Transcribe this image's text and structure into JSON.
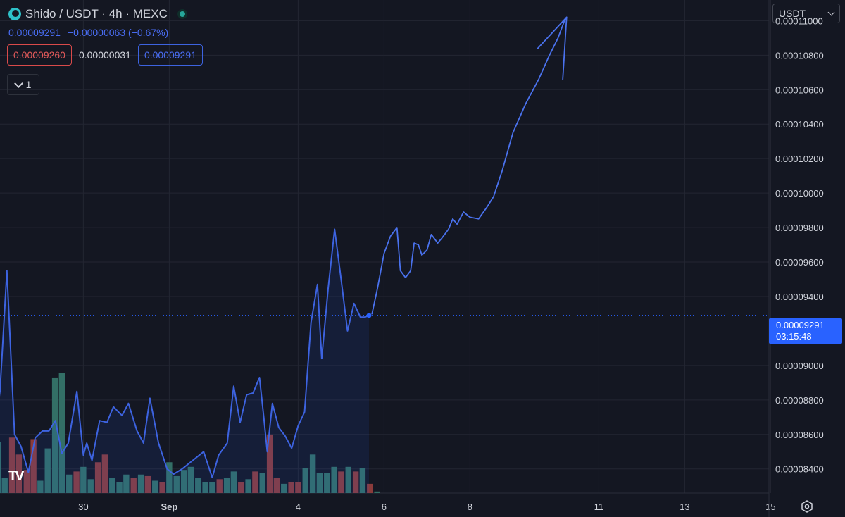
{
  "header": {
    "title": "Shido / USDT · 4h · MEXC",
    "last_price": "0.00009291",
    "change": "−0.00000063 (−0.67%)"
  },
  "boxes": {
    "bid": "0.00009260",
    "spread": "0.00000031",
    "ask": "0.00009291"
  },
  "indicator_toggle": {
    "count": "1"
  },
  "currency_selector": {
    "value": "USDT"
  },
  "price_label": {
    "price": "0.00009291",
    "countdown": "03:15:48"
  },
  "brand": {
    "logo_text": "TV"
  },
  "colors": {
    "line": "#3d63e0",
    "sketch": "#4a72ee",
    "vol_up": "#336f66",
    "vol_down": "#8a3b3b",
    "grid": "#232632",
    "accent": "#2962ff"
  },
  "chart_data": {
    "type": "line",
    "title": "Shido / USDT · 4h · MEXC",
    "y_ticks": [
      "0.00011000",
      "0.00010800",
      "0.00010600",
      "0.00010400",
      "0.00010200",
      "0.00010000",
      "0.00009800",
      "0.00009600",
      "0.00009400",
      "0.00009000",
      "0.00008800",
      "0.00008600",
      "0.00008400"
    ],
    "ylim": [
      8.26e-05,
      0.0001112
    ],
    "x_ticks": [
      {
        "label": "30",
        "day": 30
      },
      {
        "label": "Sep",
        "day": 32
      },
      {
        "label": "4",
        "day": 35
      },
      {
        "label": "6",
        "day": 37
      },
      {
        "label": "8",
        "day": 39
      },
      {
        "label": "11",
        "day": 42
      },
      {
        "label": "13",
        "day": 44
      },
      {
        "label": "15",
        "day": 46
      }
    ],
    "xlim": [
      28.06,
      45.96
    ],
    "current_price": 9.291e-05,
    "series": [
      {
        "points": [
          [
            28.0,
            8.74e-05
          ],
          [
            28.06,
            8.85e-05
          ],
          [
            28.22,
            9.55e-05
          ],
          [
            28.4,
            8.6e-05
          ],
          [
            28.55,
            8.53e-05
          ],
          [
            28.72,
            8.38e-05
          ],
          [
            28.88,
            8.58e-05
          ],
          [
            29.05,
            8.62e-05
          ],
          [
            29.2,
            8.62e-05
          ],
          [
            29.35,
            8.68e-05
          ],
          [
            29.5,
            8.49e-05
          ],
          [
            29.65,
            8.55e-05
          ],
          [
            29.85,
            8.85e-05
          ],
          [
            30.0,
            8.48e-05
          ],
          [
            30.08,
            8.55e-05
          ],
          [
            30.2,
            8.45e-05
          ],
          [
            30.38,
            8.68e-05
          ],
          [
            30.55,
            8.67e-05
          ],
          [
            30.7,
            8.76e-05
          ],
          [
            30.9,
            8.71e-05
          ],
          [
            31.05,
            8.78e-05
          ],
          [
            31.25,
            8.62e-05
          ],
          [
            31.4,
            8.55e-05
          ],
          [
            31.55,
            8.81e-05
          ],
          [
            31.75,
            8.55e-05
          ],
          [
            31.95,
            8.4e-05
          ],
          [
            32.1,
            8.37e-05
          ],
          [
            32.3,
            8.4e-05
          ],
          [
            32.55,
            8.45e-05
          ],
          [
            32.8,
            8.5e-05
          ],
          [
            33.0,
            8.35e-05
          ],
          [
            33.15,
            8.48e-05
          ],
          [
            33.35,
            8.55e-05
          ],
          [
            33.5,
            8.88e-05
          ],
          [
            33.65,
            8.67e-05
          ],
          [
            33.8,
            8.83e-05
          ],
          [
            33.95,
            8.84e-05
          ],
          [
            34.1,
            8.93e-05
          ],
          [
            34.2,
            8.7e-05
          ],
          [
            34.28,
            8.5e-05
          ],
          [
            34.4,
            8.78e-05
          ],
          [
            34.55,
            8.64e-05
          ],
          [
            34.7,
            8.59e-05
          ],
          [
            34.85,
            8.52e-05
          ],
          [
            35.0,
            8.65e-05
          ],
          [
            35.15,
            8.73e-05
          ],
          [
            35.3,
            9.25e-05
          ],
          [
            35.45,
            9.47e-05
          ],
          [
            35.55,
            9.04e-05
          ],
          [
            35.7,
            9.45e-05
          ],
          [
            35.85,
            9.79e-05
          ],
          [
            36.0,
            9.5e-05
          ],
          [
            36.15,
            9.2e-05
          ],
          [
            36.3,
            9.36e-05
          ],
          [
            36.45,
            9.28e-05
          ],
          [
            36.55,
            9.28e-05
          ],
          [
            36.65,
            9.29e-05
          ]
        ]
      }
    ],
    "volume": [
      {
        "day": 28.02,
        "v": 33,
        "dir": "up"
      },
      {
        "day": 28.17,
        "v": 10,
        "dir": "up"
      },
      {
        "day": 28.34,
        "v": 36,
        "dir": "down"
      },
      {
        "day": 28.5,
        "v": 25,
        "dir": "down"
      },
      {
        "day": 28.68,
        "v": 15,
        "dir": "down"
      },
      {
        "day": 28.84,
        "v": 35,
        "dir": "down"
      },
      {
        "day": 29.0,
        "v": 8,
        "dir": "up"
      },
      {
        "day": 29.17,
        "v": 29,
        "dir": "up"
      },
      {
        "day": 29.34,
        "v": 75,
        "dir": "up"
      },
      {
        "day": 29.5,
        "v": 78,
        "dir": "up"
      },
      {
        "day": 29.67,
        "v": 12,
        "dir": "up"
      },
      {
        "day": 29.84,
        "v": 14,
        "dir": "down"
      },
      {
        "day": 30.0,
        "v": 17,
        "dir": "up"
      },
      {
        "day": 30.17,
        "v": 9,
        "dir": "up"
      },
      {
        "day": 30.34,
        "v": 20,
        "dir": "down"
      },
      {
        "day": 30.5,
        "v": 25,
        "dir": "down"
      },
      {
        "day": 30.67,
        "v": 10,
        "dir": "up"
      },
      {
        "day": 30.84,
        "v": 7,
        "dir": "up"
      },
      {
        "day": 31.0,
        "v": 12,
        "dir": "up"
      },
      {
        "day": 31.17,
        "v": 10,
        "dir": "down"
      },
      {
        "day": 31.34,
        "v": 12,
        "dir": "up"
      },
      {
        "day": 31.5,
        "v": 11,
        "dir": "down"
      },
      {
        "day": 31.67,
        "v": 8,
        "dir": "up"
      },
      {
        "day": 31.84,
        "v": 7,
        "dir": "down"
      },
      {
        "day": 32.0,
        "v": 20,
        "dir": "up"
      },
      {
        "day": 32.17,
        "v": 11,
        "dir": "up"
      },
      {
        "day": 32.34,
        "v": 15,
        "dir": "up"
      },
      {
        "day": 32.5,
        "v": 17,
        "dir": "up"
      },
      {
        "day": 32.67,
        "v": 10,
        "dir": "up"
      },
      {
        "day": 32.84,
        "v": 7,
        "dir": "up"
      },
      {
        "day": 33.0,
        "v": 7,
        "dir": "up"
      },
      {
        "day": 33.17,
        "v": 9,
        "dir": "down"
      },
      {
        "day": 33.34,
        "v": 10,
        "dir": "up"
      },
      {
        "day": 33.5,
        "v": 14,
        "dir": "up"
      },
      {
        "day": 33.67,
        "v": 7,
        "dir": "down"
      },
      {
        "day": 33.84,
        "v": 9,
        "dir": "up"
      },
      {
        "day": 34.0,
        "v": 14,
        "dir": "down"
      },
      {
        "day": 34.17,
        "v": 13,
        "dir": "up"
      },
      {
        "day": 34.34,
        "v": 38,
        "dir": "down"
      },
      {
        "day": 34.5,
        "v": 10,
        "dir": "down"
      },
      {
        "day": 34.67,
        "v": 6,
        "dir": "up"
      },
      {
        "day": 34.84,
        "v": 7,
        "dir": "down"
      },
      {
        "day": 35.0,
        "v": 7,
        "dir": "down"
      },
      {
        "day": 35.17,
        "v": 16,
        "dir": "up"
      },
      {
        "day": 35.34,
        "v": 25,
        "dir": "up"
      },
      {
        "day": 35.5,
        "v": 13,
        "dir": "up"
      },
      {
        "day": 35.67,
        "v": 13,
        "dir": "up"
      },
      {
        "day": 35.84,
        "v": 17,
        "dir": "up"
      },
      {
        "day": 36.0,
        "v": 14,
        "dir": "down"
      },
      {
        "day": 36.17,
        "v": 17,
        "dir": "up"
      },
      {
        "day": 36.34,
        "v": 14,
        "dir": "down"
      },
      {
        "day": 36.5,
        "v": 16,
        "dir": "up"
      },
      {
        "day": 36.67,
        "v": 6,
        "dir": "down"
      },
      {
        "day": 36.84,
        "v": 1,
        "dir": "up"
      }
    ],
    "sketch_path": [
      [
        36.72,
        9.3e-05
      ],
      [
        36.85,
        9.45e-05
      ],
      [
        37.0,
        9.65e-05
      ],
      [
        37.15,
        9.75e-05
      ],
      [
        37.3,
        9.8e-05
      ],
      [
        37.38,
        9.55e-05
      ],
      [
        37.5,
        9.51e-05
      ],
      [
        37.62,
        9.55e-05
      ],
      [
        37.7,
        9.71e-05
      ],
      [
        37.8,
        9.7e-05
      ],
      [
        37.88,
        9.64e-05
      ],
      [
        38.0,
        9.67e-05
      ],
      [
        38.1,
        9.76e-05
      ],
      [
        38.25,
        9.71e-05
      ],
      [
        38.35,
        9.74e-05
      ],
      [
        38.5,
        9.79e-05
      ],
      [
        38.6,
        9.85e-05
      ],
      [
        38.7,
        9.82e-05
      ],
      [
        38.85,
        9.89e-05
      ],
      [
        39.0,
        9.86e-05
      ],
      [
        39.2,
        9.85e-05
      ],
      [
        39.4,
        9.92e-05
      ],
      [
        39.55,
        9.98e-05
      ],
      [
        39.75,
        0.0001013
      ],
      [
        40.0,
        0.0001035
      ],
      [
        40.3,
        0.0001052
      ],
      [
        40.6,
        0.0001066
      ],
      [
        40.85,
        0.000108
      ],
      [
        41.05,
        0.000109
      ],
      [
        41.2,
        0.00011
      ],
      [
        41.25,
        0.0001102
      ]
    ],
    "arrow_head": {
      "tip": [
        41.25,
        0.0001102
      ],
      "left": [
        40.58,
        0.0001084
      ],
      "down": [
        41.16,
        0.0001066
      ]
    }
  }
}
